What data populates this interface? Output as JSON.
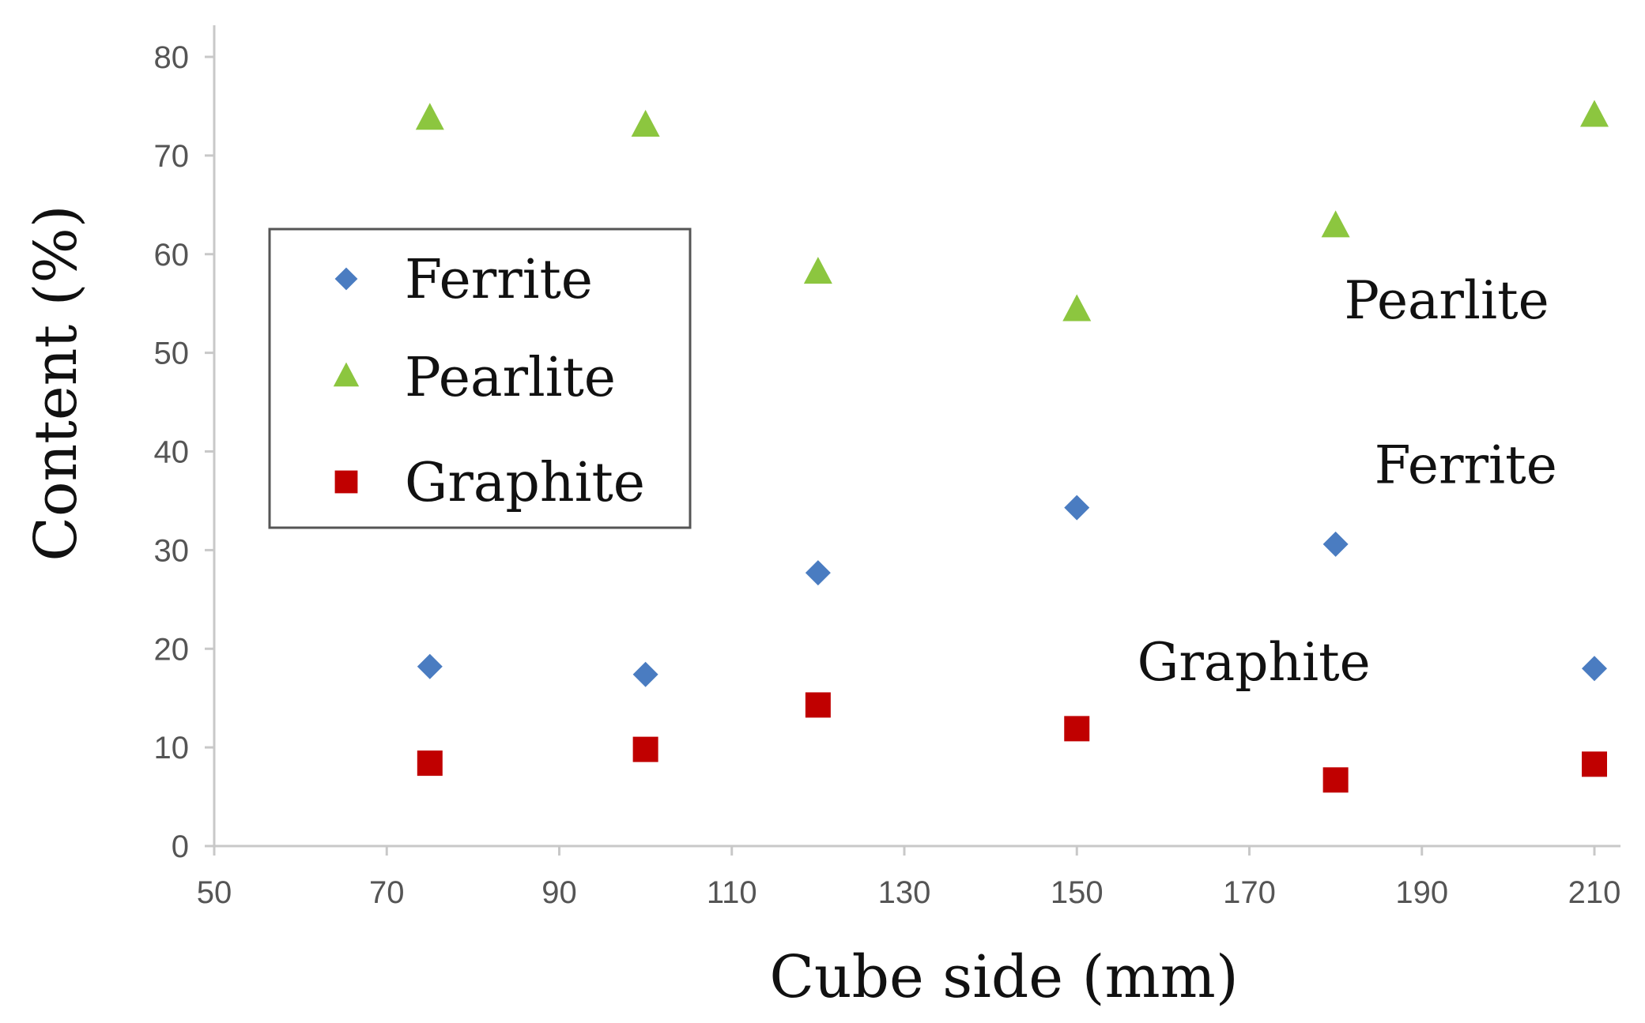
{
  "chart_data": {
    "type": "scatter",
    "title": "",
    "xlabel": "Cube side  (mm)",
    "ylabel": "Content  (%)",
    "xlim": [
      50,
      220
    ],
    "ylim": [
      0,
      80
    ],
    "x_ticks": [
      50,
      70,
      90,
      110,
      130,
      150,
      170,
      190,
      210
    ],
    "y_ticks": [
      0,
      10,
      20,
      30,
      40,
      50,
      60,
      70,
      80
    ],
    "grid": false,
    "legend_position": "center-left",
    "series": [
      {
        "name": "Ferrite",
        "marker": "diamond",
        "color": "#4a7cc1",
        "x": [
          75,
          100,
          120,
          150,
          180,
          210
        ],
        "y": [
          18.2,
          17.4,
          27.7,
          34.3,
          30.6,
          18.0
        ]
      },
      {
        "name": "Pearlite",
        "marker": "triangle",
        "color": "#8cc63f",
        "x": [
          75,
          100,
          120,
          150,
          180,
          210
        ],
        "y": [
          73.7,
          73.0,
          58.1,
          54.3,
          62.8,
          74.0
        ]
      },
      {
        "name": "Graphite",
        "marker": "square",
        "color": "#c00000",
        "x": [
          75,
          100,
          120,
          150,
          180,
          210
        ],
        "y": [
          8.4,
          9.8,
          14.3,
          11.9,
          6.7,
          8.3
        ]
      }
    ],
    "annotations": [
      {
        "text": "Pearlite",
        "x": 181,
        "y": 53.5
      },
      {
        "text": "Ferrite",
        "x": 184.5,
        "y": 36.8
      },
      {
        "text": "Graphite",
        "x": 157,
        "y": 16.8
      }
    ]
  }
}
